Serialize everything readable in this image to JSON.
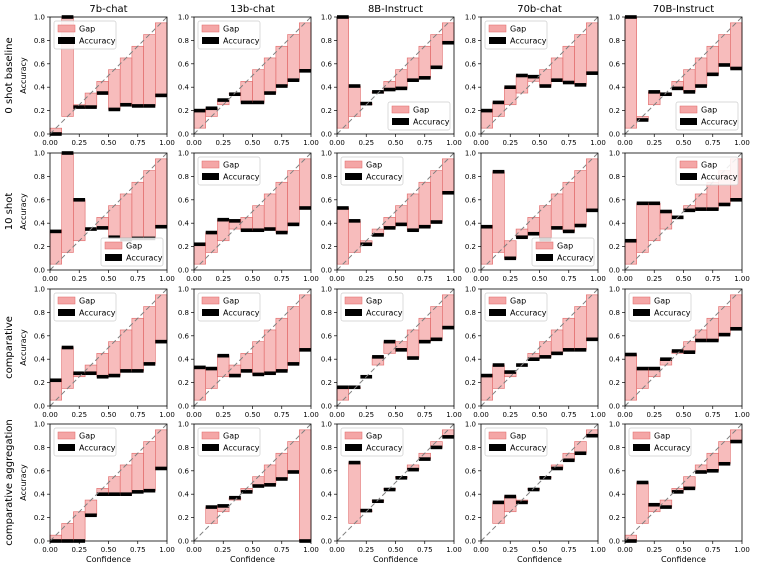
{
  "figure": {
    "columns": [
      "7b-chat",
      "13b-chat",
      "8B-Instruct",
      "70b-chat",
      "70B-Instruct"
    ],
    "rows": [
      "0 shot baseline",
      "10 shot",
      "comparative",
      "comparative aggregation"
    ],
    "xlabel": "Confidence",
    "ylabel": "Accuracy",
    "legend": {
      "gap": "Gap",
      "accuracy": "Accuracy"
    },
    "ticks": [
      "0.0",
      "0.2",
      "0.4",
      "0.6",
      "0.8",
      "1.0"
    ],
    "xticks": [
      "0.00",
      "0.25",
      "0.50",
      "0.75",
      "1.00"
    ],
    "colors": {
      "gap": "#f4a6a6",
      "gap_edge": "#e06666",
      "accuracy": "#000000",
      "diagonal": "#808080"
    }
  },
  "chart_data": [
    {
      "type": "bar",
      "row": "0 shot baseline",
      "column": "7b-chat",
      "legend": "upper-left",
      "xlim": [
        0,
        1
      ],
      "ylim": [
        0,
        1
      ],
      "bins": [
        0.05,
        0.15,
        0.25,
        0.35,
        0.45,
        0.55,
        0.65,
        0.75,
        0.85,
        0.95
      ],
      "accuracy": [
        0.0,
        1.0,
        0.23,
        0.23,
        0.35,
        0.21,
        0.25,
        0.24,
        0.24,
        0.33
      ]
    },
    {
      "type": "bar",
      "row": "0 shot baseline",
      "column": "13b-chat",
      "legend": "upper-left",
      "xlim": [
        0,
        1
      ],
      "ylim": [
        0,
        1
      ],
      "bins": [
        0.05,
        0.15,
        0.25,
        0.35,
        0.45,
        0.55,
        0.65,
        0.75,
        0.85,
        0.95
      ],
      "accuracy": [
        0.2,
        0.22,
        0.29,
        0.34,
        0.27,
        0.27,
        0.35,
        0.41,
        0.46,
        0.54
      ]
    },
    {
      "type": "bar",
      "row": "0 shot baseline",
      "column": "8B-Instruct",
      "legend": "lower-right",
      "xlim": [
        0,
        1
      ],
      "ylim": [
        0,
        1
      ],
      "bins": [
        0.05,
        0.15,
        0.25,
        0.35,
        0.45,
        0.55,
        0.65,
        0.75,
        0.85,
        0.95
      ],
      "accuracy": [
        1.0,
        0.41,
        0.26,
        0.36,
        0.38,
        0.39,
        0.46,
        0.48,
        0.57,
        0.78
      ]
    },
    {
      "type": "bar",
      "row": "0 shot baseline",
      "column": "70b-chat",
      "legend": "upper-left",
      "xlim": [
        0,
        1
      ],
      "ylim": [
        0,
        1
      ],
      "bins": [
        0.05,
        0.15,
        0.25,
        0.35,
        0.45,
        0.55,
        0.65,
        0.75,
        0.85,
        0.95
      ],
      "accuracy": [
        0.2,
        0.27,
        0.4,
        0.5,
        0.49,
        0.41,
        0.46,
        0.44,
        0.42,
        0.52
      ]
    },
    {
      "type": "bar",
      "row": "0 shot baseline",
      "column": "70B-Instruct",
      "legend": "lower-right",
      "xlim": [
        0,
        1
      ],
      "ylim": [
        0,
        1
      ],
      "bins": [
        0.05,
        0.15,
        0.25,
        0.35,
        0.45,
        0.55,
        0.65,
        0.75,
        0.85,
        0.95
      ],
      "accuracy": [
        1.0,
        0.12,
        0.36,
        0.34,
        0.39,
        0.36,
        0.41,
        0.51,
        0.59,
        0.56
      ]
    },
    {
      "type": "bar",
      "row": "10 shot",
      "column": "7b-chat",
      "legend": "lower-right",
      "xlim": [
        0,
        1
      ],
      "ylim": [
        0,
        1
      ],
      "bins": [
        0.05,
        0.15,
        0.25,
        0.35,
        0.45,
        0.55,
        0.65,
        0.75,
        0.85,
        0.95
      ],
      "accuracy": [
        0.33,
        1.0,
        0.6,
        0.35,
        0.36,
        0.28,
        0.26,
        0.27,
        0.27,
        0.37
      ]
    },
    {
      "type": "bar",
      "row": "10 shot",
      "column": "13b-chat",
      "legend": "upper-left",
      "xlim": [
        0,
        1
      ],
      "ylim": [
        0,
        1
      ],
      "bins": [
        0.05,
        0.15,
        0.25,
        0.35,
        0.45,
        0.55,
        0.65,
        0.75,
        0.85,
        0.95
      ],
      "accuracy": [
        0.22,
        0.32,
        0.43,
        0.42,
        0.34,
        0.34,
        0.35,
        0.32,
        0.39,
        0.53
      ]
    },
    {
      "type": "bar",
      "row": "10 shot",
      "column": "8B-Instruct",
      "legend": "upper-left",
      "xlim": [
        0,
        1
      ],
      "ylim": [
        0,
        1
      ],
      "bins": [
        0.05,
        0.15,
        0.25,
        0.35,
        0.45,
        0.55,
        0.65,
        0.75,
        0.85,
        0.95
      ],
      "accuracy": [
        0.53,
        0.42,
        0.22,
        0.3,
        0.36,
        0.39,
        0.34,
        0.37,
        0.41,
        0.66
      ]
    },
    {
      "type": "bar",
      "row": "10 shot",
      "column": "70b-chat",
      "legend": "lower-right",
      "xlim": [
        0,
        1
      ],
      "ylim": [
        0,
        1
      ],
      "bins": [
        0.05,
        0.15,
        0.25,
        0.35,
        0.45,
        0.55,
        0.65,
        0.75,
        0.85,
        0.95
      ],
      "accuracy": [
        0.37,
        0.84,
        0.1,
        0.28,
        0.31,
        0.26,
        0.36,
        0.33,
        0.38,
        0.51
      ]
    },
    {
      "type": "bar",
      "row": "10 shot",
      "column": "70B-Instruct",
      "legend": "upper-right",
      "xlim": [
        0,
        1
      ],
      "ylim": [
        0,
        1
      ],
      "bins": [
        0.05,
        0.15,
        0.25,
        0.35,
        0.45,
        0.55,
        0.65,
        0.75,
        0.85,
        0.95
      ],
      "accuracy": [
        0.25,
        0.57,
        0.57,
        0.5,
        0.45,
        0.51,
        0.52,
        0.52,
        0.56,
        0.6
      ]
    },
    {
      "type": "bar",
      "row": "comparative",
      "column": "7b-chat",
      "legend": "upper-left",
      "xlim": [
        0,
        1
      ],
      "ylim": [
        0,
        1
      ],
      "bins": [
        0.05,
        0.15,
        0.25,
        0.35,
        0.45,
        0.55,
        0.65,
        0.75,
        0.85,
        0.95
      ],
      "accuracy": [
        0.22,
        0.5,
        0.28,
        0.28,
        0.25,
        0.26,
        0.3,
        0.3,
        0.36,
        0.55
      ]
    },
    {
      "type": "bar",
      "row": "comparative",
      "column": "13b-chat",
      "legend": "upper-left",
      "xlim": [
        0,
        1
      ],
      "ylim": [
        0,
        1
      ],
      "bins": [
        0.05,
        0.15,
        0.25,
        0.35,
        0.45,
        0.55,
        0.65,
        0.75,
        0.85,
        0.95
      ],
      "accuracy": [
        0.33,
        0.32,
        0.43,
        0.26,
        0.3,
        0.27,
        0.28,
        0.3,
        0.36,
        0.48
      ]
    },
    {
      "type": "bar",
      "row": "comparative",
      "column": "8B-Instruct",
      "legend": "upper-left",
      "xlim": [
        0,
        1
      ],
      "ylim": [
        0,
        1
      ],
      "bins": [
        0.05,
        0.15,
        0.25,
        0.35,
        0.45,
        0.55,
        0.65,
        0.75,
        0.85,
        0.95
      ],
      "accuracy": [
        0.16,
        0.16,
        0.25,
        0.42,
        0.55,
        0.48,
        0.41,
        0.55,
        0.57,
        0.67
      ]
    },
    {
      "type": "bar",
      "row": "comparative",
      "column": "70b-chat",
      "legend": "upper-left",
      "xlim": [
        0,
        1
      ],
      "ylim": [
        0,
        1
      ],
      "bins": [
        0.05,
        0.15,
        0.25,
        0.35,
        0.45,
        0.55,
        0.65,
        0.75,
        0.85,
        0.95
      ],
      "accuracy": [
        0.26,
        0.35,
        0.29,
        0.35,
        0.4,
        0.42,
        0.45,
        0.48,
        0.48,
        0.57
      ]
    },
    {
      "type": "bar",
      "row": "comparative",
      "column": "70B-Instruct",
      "legend": "upper-left",
      "xlim": [
        0,
        1
      ],
      "ylim": [
        0,
        1
      ],
      "bins": [
        0.05,
        0.15,
        0.25,
        0.35,
        0.45,
        0.55,
        0.65,
        0.75,
        0.85,
        0.95
      ],
      "accuracy": [
        0.44,
        0.32,
        0.32,
        0.4,
        0.47,
        0.46,
        0.56,
        0.56,
        0.61,
        0.66
      ]
    },
    {
      "type": "bar",
      "row": "comparative aggregation",
      "column": "7b-chat",
      "legend": "upper-left",
      "xlim": [
        0,
        1
      ],
      "ylim": [
        0,
        1
      ],
      "bins": [
        0.05,
        0.15,
        0.25,
        0.35,
        0.45,
        0.55,
        0.65,
        0.75,
        0.85,
        0.95
      ],
      "accuracy": [
        0.0,
        0.0,
        0.0,
        0.22,
        0.4,
        0.4,
        0.4,
        0.42,
        0.43,
        0.62
      ]
    },
    {
      "type": "bar",
      "row": "comparative aggregation",
      "column": "13b-chat",
      "legend": "upper-left",
      "xlim": [
        0,
        1
      ],
      "ylim": [
        0,
        1
      ],
      "bins": [
        0.15,
        0.25,
        0.35,
        0.45,
        0.55,
        0.65,
        0.75,
        0.85,
        0.95
      ],
      "accuracy": [
        0.29,
        0.3,
        0.37,
        0.42,
        0.47,
        0.48,
        0.53,
        0.59,
        0.0
      ]
    },
    {
      "type": "bar",
      "row": "comparative aggregation",
      "column": "8B-Instruct",
      "legend": "upper-left",
      "xlim": [
        0,
        1
      ],
      "ylim": [
        0,
        1
      ],
      "bins": [
        0.15,
        0.25,
        0.35,
        0.45,
        0.55,
        0.65,
        0.75,
        0.85,
        0.95
      ],
      "accuracy": [
        0.67,
        0.26,
        0.34,
        0.44,
        0.54,
        0.61,
        0.7,
        0.8,
        0.89
      ]
    },
    {
      "type": "bar",
      "row": "comparative aggregation",
      "column": "70b-chat",
      "legend": "upper-left",
      "xlim": [
        0,
        1
      ],
      "ylim": [
        0,
        1
      ],
      "bins": [
        0.15,
        0.25,
        0.35,
        0.45,
        0.55,
        0.65,
        0.75,
        0.85,
        0.95
      ],
      "accuracy": [
        0.33,
        0.38,
        0.33,
        0.44,
        0.54,
        0.62,
        0.69,
        0.75,
        0.9
      ]
    },
    {
      "type": "bar",
      "row": "comparative aggregation",
      "column": "70B-Instruct",
      "legend": "upper-left",
      "xlim": [
        0,
        1
      ],
      "ylim": [
        0,
        1
      ],
      "bins": [
        0.05,
        0.15,
        0.25,
        0.35,
        0.45,
        0.55,
        0.65,
        0.75,
        0.85,
        0.95
      ],
      "accuracy": [
        0.0,
        0.5,
        0.31,
        0.29,
        0.42,
        0.45,
        0.59,
        0.6,
        0.66,
        0.85
      ]
    }
  ]
}
